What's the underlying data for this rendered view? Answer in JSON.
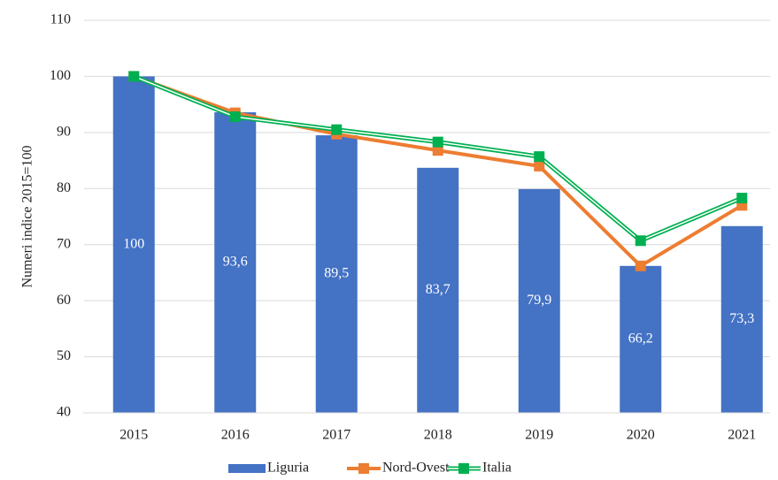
{
  "chart_data": {
    "type": "bar",
    "y_label": "Numeri indice 2015=100",
    "categories": [
      "2015",
      "2016",
      "2017",
      "2018",
      "2019",
      "2020",
      "2021"
    ],
    "series": [
      {
        "name": "Liguria",
        "type": "bar",
        "color": "#4472c4",
        "values": [
          100,
          93.6,
          89.5,
          83.7,
          79.9,
          66.2,
          73.3
        ],
        "value_labels": [
          "100",
          "93,6",
          "89,5",
          "83,7",
          "79,9",
          "66,2",
          "73,3"
        ]
      },
      {
        "name": "Nord-Ovest",
        "type": "line",
        "color": "#ed7d31",
        "values": [
          100,
          93.5,
          89.7,
          86.8,
          84.0,
          66.2,
          77.0
        ]
      },
      {
        "name": "Italia",
        "type": "line",
        "color": "#00b050",
        "values": [
          100,
          92.8,
          90.5,
          88.3,
          85.7,
          70.7,
          78.3
        ]
      }
    ],
    "ylim": [
      40,
      110
    ],
    "yticks": [
      40,
      50,
      60,
      70,
      80,
      90,
      100,
      110
    ],
    "grid": true,
    "legend": "bottom"
  }
}
